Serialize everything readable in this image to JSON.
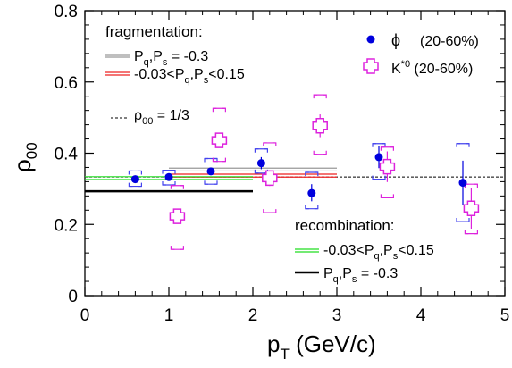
{
  "chart_data": {
    "type": "scatter",
    "xlim": [
      0,
      5
    ],
    "ylim": [
      0,
      0.8
    ],
    "x_ticks": [
      0,
      1,
      2,
      3,
      4,
      5
    ],
    "y_ticks": [
      0,
      0.2,
      0.4,
      0.6,
      0.8
    ],
    "x_tick_labels": [
      "0",
      "1",
      "2",
      "3",
      "4",
      "5"
    ],
    "y_tick_labels": [
      "0",
      "0.2",
      "0.4",
      "0.6",
      "0.8"
    ],
    "ylabel": "ρ",
    "ylabel_sub": "00",
    "xlabel_main": "p",
    "xlabel_sub": "T",
    "xlabel_rest": " (GeV/c)",
    "grid": false,
    "reference_line": {
      "y": 0.3333,
      "x_range": [
        0,
        5
      ],
      "style": "dashed",
      "color": "#000000"
    },
    "series": [
      {
        "name": "ϕ",
        "name_suffix": "(20-60%)",
        "marker": "circle",
        "color": "#0000dd",
        "sys_color": "#4444ee",
        "points": [
          {
            "x": 0.6,
            "y": 0.327,
            "stat": [
              0.32,
              0.334
            ],
            "sys": [
              0.307,
              0.35
            ]
          },
          {
            "x": 1.0,
            "y": 0.333,
            "stat": [
              0.326,
              0.34
            ],
            "sys": [
              0.311,
              0.352
            ]
          },
          {
            "x": 1.5,
            "y": 0.349,
            "stat": [
              0.342,
              0.356
            ],
            "sys": [
              0.313,
              0.385
            ]
          },
          {
            "x": 2.1,
            "y": 0.372,
            "stat": [
              0.355,
              0.389
            ],
            "sys": [
              0.344,
              0.412
            ]
          },
          {
            "x": 2.7,
            "y": 0.288,
            "stat": [
              0.265,
              0.313
            ],
            "sys": [
              0.244,
              0.346
            ]
          },
          {
            "x": 3.5,
            "y": 0.389,
            "stat": [
              0.358,
              0.42
            ],
            "sys": [
              0.327,
              0.427
            ]
          },
          {
            "x": 4.5,
            "y": 0.317,
            "stat": [
              0.255,
              0.379
            ],
            "sys": [
              0.208,
              0.427
            ]
          }
        ]
      },
      {
        "name": "K",
        "name_sup": "*0",
        "name_suffix": "(20-60%)",
        "marker": "cross",
        "color": "#dd22dd",
        "sys_color": "#dd22dd",
        "points": [
          {
            "x": 1.1,
            "y": 0.223,
            "stat": [
              0.205,
              0.241
            ],
            "sys": [
              0.13,
              0.309
            ]
          },
          {
            "x": 1.6,
            "y": 0.436,
            "stat": [
              0.418,
              0.454
            ],
            "sys": [
              0.377,
              0.526
            ]
          },
          {
            "x": 2.2,
            "y": 0.33,
            "stat": [
              0.308,
              0.352
            ],
            "sys": [
              0.233,
              0.429
            ]
          },
          {
            "x": 2.8,
            "y": 0.477,
            "stat": [
              0.445,
              0.509
            ],
            "sys": [
              0.397,
              0.564
            ]
          },
          {
            "x": 3.6,
            "y": 0.362,
            "stat": [
              0.319,
              0.405
            ],
            "sys": [
              0.275,
              0.417
            ]
          },
          {
            "x": 4.6,
            "y": 0.245,
            "stat": [
              0.188,
              0.302
            ],
            "sys": [
              0.174,
              0.313
            ]
          }
        ]
      }
    ],
    "model_lines": [
      {
        "group": "fragmentation",
        "label": "Pq,Ps = -0.3",
        "style": "double",
        "color": "#999999",
        "x_range": [
          1.0,
          3.0
        ],
        "y": 0.354
      },
      {
        "group": "fragmentation",
        "label": "-0.03<Pq,Ps<0.15",
        "style": "double",
        "color": "#ee2222",
        "x_range": [
          1.0,
          3.0
        ],
        "y": 0.337
      },
      {
        "group": "recombination",
        "label": "-0.03<Pq,Ps<0.15",
        "style": "double",
        "color": "#22dd22",
        "x_range": [
          0.0,
          2.0
        ],
        "y": 0.33
      },
      {
        "group": "recombination",
        "label": "Pq,Ps = -0.3",
        "style": "solid",
        "color": "#000000",
        "x_range": [
          0.0,
          2.0
        ],
        "y": 0.293
      }
    ]
  },
  "legend": {
    "fragmentation_title": "fragmentation:",
    "frag_line1_a": "P",
    "frag_line1_sub_a": "q",
    "frag_line1_b": ",P",
    "frag_line1_sub_b": "s",
    "frag_line1_c": " = -0.3",
    "frag_line2_a": "-0.03<P",
    "frag_line2_sub_a": "q",
    "frag_line2_b": ",P",
    "frag_line2_sub_b": "s",
    "frag_line2_c": "<0.15",
    "rho_label": "ρ",
    "rho_sub": "00",
    "rho_rest": " = 1/3",
    "phi_label": "ϕ",
    "phi_suffix": "(20-60%)",
    "kstar_label": "K",
    "kstar_sup": "*0",
    "kstar_suffix": " (20-60%)",
    "recombination_title": "recombination:",
    "rec_line1_a": "-0.03<P",
    "rec_line1_sub_a": "q",
    "rec_line1_b": ",P",
    "rec_line1_sub_b": "s",
    "rec_line1_c": "<0.15",
    "rec_line2_a": "P",
    "rec_line2_sub_a": "q",
    "rec_line2_b": ",P",
    "rec_line2_sub_b": "s",
    "rec_line2_c": " = -0.3"
  }
}
